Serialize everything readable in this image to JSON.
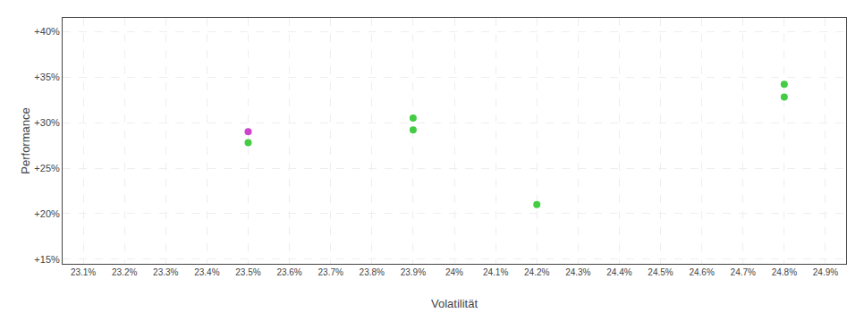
{
  "chart_data": {
    "type": "scatter",
    "xlabel": "Volatilität",
    "ylabel": "Performance",
    "x": [
      23.5,
      23.5,
      23.9,
      23.9,
      24.2,
      24.8,
      24.8
    ],
    "values": [
      29.0,
      27.8,
      30.5,
      29.2,
      21.0,
      34.2,
      32.8
    ],
    "colors": [
      "#cc44cc",
      "#44cc44",
      "#44cc44",
      "#44cc44",
      "#44cc44",
      "#44cc44",
      "#44cc44"
    ],
    "xlim": [
      23.05,
      24.95
    ],
    "ylim": [
      14.5,
      41.5
    ],
    "xticks": [
      {
        "value": 23.1,
        "label": "23.1%"
      },
      {
        "value": 23.2,
        "label": "23.2%"
      },
      {
        "value": 23.3,
        "label": "23.3%"
      },
      {
        "value": 23.4,
        "label": "23.4%"
      },
      {
        "value": 23.5,
        "label": "23.5%"
      },
      {
        "value": 23.6,
        "label": "23.6%"
      },
      {
        "value": 23.7,
        "label": "23.7%"
      },
      {
        "value": 23.8,
        "label": "23.8%"
      },
      {
        "value": 23.9,
        "label": "23.9%"
      },
      {
        "value": 24.0,
        "label": "24%"
      },
      {
        "value": 24.1,
        "label": "24.1%"
      },
      {
        "value": 24.2,
        "label": "24.2%"
      },
      {
        "value": 24.3,
        "label": "24.3%"
      },
      {
        "value": 24.4,
        "label": "24.4%"
      },
      {
        "value": 24.5,
        "label": "24.5%"
      },
      {
        "value": 24.6,
        "label": "24.6%"
      },
      {
        "value": 24.7,
        "label": "24.7%"
      },
      {
        "value": 24.8,
        "label": "24.8%"
      },
      {
        "value": 24.9,
        "label": "24.9%"
      }
    ],
    "yticks": [
      {
        "value": 15,
        "label": "+15%"
      },
      {
        "value": 20,
        "label": "+20%"
      },
      {
        "value": 25,
        "label": "+25%"
      },
      {
        "value": 30,
        "label": "+30%"
      },
      {
        "value": 35,
        "label": "+35%"
      },
      {
        "value": 40,
        "label": "+40%"
      }
    ],
    "grid": true
  }
}
